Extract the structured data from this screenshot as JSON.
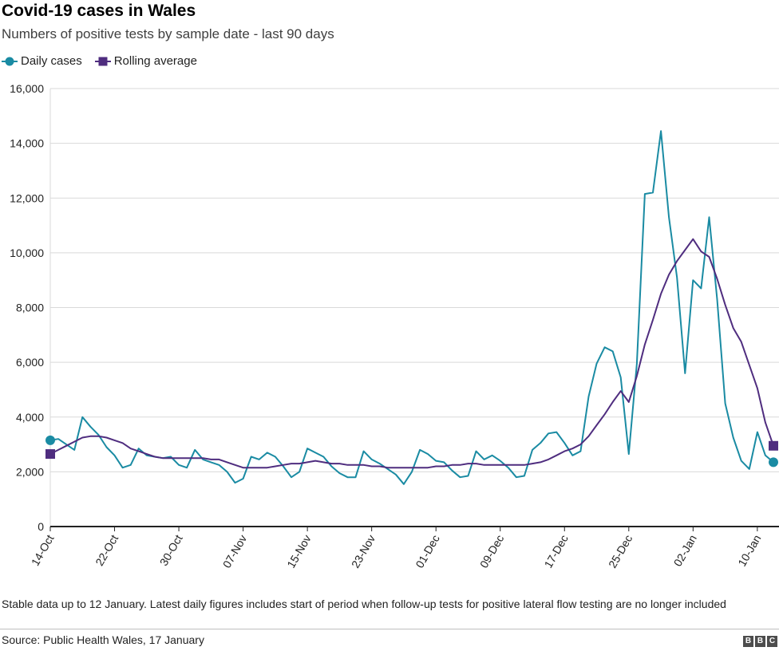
{
  "header": {
    "title": "Covid-19 cases in Wales",
    "subtitle": "Numbers of positive tests by sample date - last 90 days"
  },
  "legend": {
    "items": [
      {
        "label": "Daily cases",
        "color": "#1a8ba3",
        "marker": "circle"
      },
      {
        "label": "Rolling average",
        "color": "#4f2d7f",
        "marker": "square"
      }
    ]
  },
  "footer": {
    "note": "Stable data up to 12 January. Latest daily figures includes start of period when follow-up tests for positive lateral flow testing are no longer included",
    "source": "Source: Public Health Wales, 17 January",
    "logo_letters": [
      "B",
      "B",
      "C"
    ]
  },
  "chart_data": {
    "type": "line",
    "title": "Covid-19 cases in Wales",
    "subtitle": "Numbers of positive tests by sample date - last 90 days",
    "xlabel": "",
    "ylabel": "",
    "ylim": [
      0,
      16000
    ],
    "yticks": [
      0,
      2000,
      4000,
      6000,
      8000,
      10000,
      12000,
      14000,
      16000
    ],
    "ytick_labels": [
      "0",
      "2,000",
      "4,000",
      "6,000",
      "8,000",
      "10,000",
      "12,000",
      "14,000",
      "16,000"
    ],
    "x_ticks": [
      {
        "index": 0,
        "label": "14-Oct"
      },
      {
        "index": 8,
        "label": "22-Oct"
      },
      {
        "index": 16,
        "label": "30-Oct"
      },
      {
        "index": 24,
        "label": "07-Nov"
      },
      {
        "index": 32,
        "label": "15-Nov"
      },
      {
        "index": 40,
        "label": "23-Nov"
      },
      {
        "index": 48,
        "label": "01-Dec"
      },
      {
        "index": 56,
        "label": "09-Dec"
      },
      {
        "index": 64,
        "label": "17-Dec"
      },
      {
        "index": 72,
        "label": "25-Dec"
      },
      {
        "index": 80,
        "label": "02-Jan"
      },
      {
        "index": 88,
        "label": "10-Jan"
      }
    ],
    "x_start": "14-Oct",
    "x_end": "13-Jan",
    "grid": "horizontal",
    "legend_position": "top-left",
    "series": [
      {
        "name": "Daily cases",
        "color": "#1a8ba3",
        "values": [
          3150,
          3200,
          3000,
          2800,
          4000,
          3650,
          3350,
          2900,
          2600,
          2150,
          2250,
          2850,
          2600,
          2550,
          2500,
          2550,
          2250,
          2150,
          2800,
          2450,
          2350,
          2250,
          2000,
          1600,
          1750,
          2550,
          2450,
          2700,
          2550,
          2200,
          1800,
          2000,
          2850,
          2700,
          2550,
          2200,
          1950,
          1800,
          1800,
          2750,
          2450,
          2300,
          2100,
          1900,
          1550,
          2000,
          2800,
          2650,
          2400,
          2350,
          2050,
          1800,
          1850,
          2750,
          2450,
          2600,
          2400,
          2150,
          1800,
          1850,
          2800,
          3050,
          3400,
          3450,
          3050,
          2600,
          2750,
          4750,
          5950,
          6550,
          6400,
          5450,
          2650,
          5950,
          12150,
          12200,
          14450,
          11300,
          9100,
          5600,
          9000,
          8700,
          11300,
          8300,
          4500,
          3250,
          2400,
          2100,
          3450,
          2600,
          2350
        ]
      },
      {
        "name": "Rolling average",
        "color": "#4f2d7f",
        "values": [
          2650,
          2800,
          2950,
          3100,
          3250,
          3300,
          3300,
          3250,
          3150,
          3050,
          2850,
          2750,
          2650,
          2550,
          2500,
          2500,
          2500,
          2500,
          2500,
          2500,
          2450,
          2450,
          2350,
          2250,
          2150,
          2150,
          2150,
          2150,
          2200,
          2250,
          2300,
          2300,
          2350,
          2400,
          2350,
          2300,
          2300,
          2250,
          2250,
          2250,
          2200,
          2200,
          2150,
          2150,
          2150,
          2150,
          2150,
          2150,
          2200,
          2200,
          2250,
          2250,
          2300,
          2300,
          2250,
          2250,
          2250,
          2250,
          2250,
          2250,
          2300,
          2350,
          2450,
          2600,
          2750,
          2850,
          3000,
          3300,
          3700,
          4100,
          4550,
          4950,
          4550,
          5500,
          6650,
          7550,
          8500,
          9200,
          9700,
          10100,
          10500,
          10050,
          9850,
          9050,
          8100,
          7250,
          6750,
          5900,
          5050,
          3800,
          2950
        ]
      }
    ]
  }
}
